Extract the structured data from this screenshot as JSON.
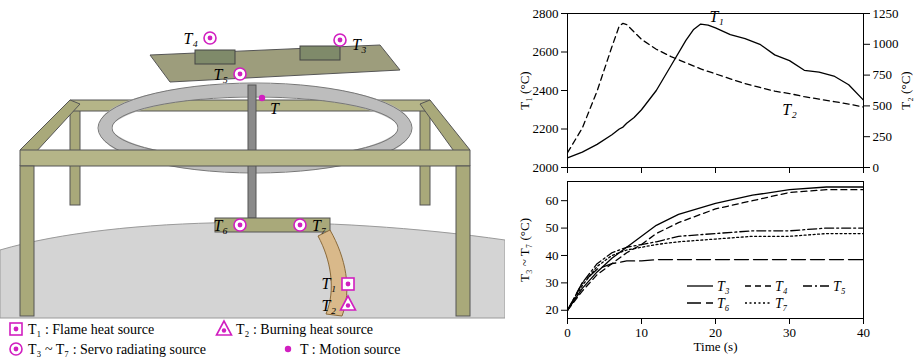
{
  "diagram": {
    "labels": [
      {
        "text": "T₁",
        "marker": "square"
      },
      {
        "text": "T₂",
        "marker": "triangle"
      },
      {
        "text": "T₃",
        "marker": "circle"
      },
      {
        "text": "T₄",
        "marker": "circle"
      },
      {
        "text": "T₅",
        "marker": "circle"
      },
      {
        "text": "T₆",
        "marker": "circle"
      },
      {
        "text": "T₇",
        "marker": "circle"
      },
      {
        "text": "T",
        "marker": "dot"
      }
    ],
    "legend": [
      {
        "marker": "square",
        "text": "T₁ : Flame heat source"
      },
      {
        "marker": "triangle",
        "text": "T₂ : Burning heat source"
      },
      {
        "marker": "circle",
        "text": "T₃ ~ T₇ : Servo radiating source"
      },
      {
        "marker": "dot",
        "text": "T : Motion source"
      }
    ]
  },
  "chart_data": [
    {
      "type": "line",
      "x": [
        0,
        2,
        4,
        6,
        7,
        7.5,
        8,
        9,
        10,
        12,
        14,
        16,
        17,
        18,
        19,
        20,
        22,
        24,
        26,
        28,
        30,
        32,
        34,
        36,
        38,
        40
      ],
      "series": [
        {
          "name": "T₁",
          "color": "#000000",
          "line_style": "solid",
          "values": [
            2050,
            2080,
            2120,
            2170,
            2200,
            2210,
            2230,
            2260,
            2300,
            2400,
            2530,
            2660,
            2715,
            2745,
            2740,
            2725,
            2690,
            2670,
            2640,
            2585,
            2555,
            2505,
            2495,
            2475,
            2430,
            2350
          ]
        },
        {
          "name": "T₂",
          "color": "#000000",
          "line_style": "dashed",
          "axis": "y2",
          "values": [
            120,
            320,
            620,
            980,
            1150,
            1170,
            1160,
            1100,
            1040,
            960,
            900,
            850,
            825,
            800,
            780,
            760,
            720,
            680,
            650,
            620,
            600,
            575,
            555,
            535,
            515,
            490
          ]
        }
      ],
      "xlim": [
        0,
        40
      ],
      "xticks": [
        0,
        10,
        20,
        30,
        40
      ],
      "ylim": [
        2000,
        2800
      ],
      "yticks": [
        2000,
        2200,
        2400,
        2600,
        2800
      ],
      "y2lim": [
        0,
        1250
      ],
      "y2ticks": [
        0,
        250,
        500,
        750,
        1000,
        1250
      ],
      "y_label": "T₁ (°C)",
      "y2_label": "T₂ (°C)",
      "tick_labels": "y"
    },
    {
      "type": "line",
      "x": [
        0,
        2,
        4,
        6,
        8,
        10,
        12,
        15,
        20,
        25,
        30,
        35,
        40
      ],
      "series": [
        {
          "name": "T₃",
          "color": "#000000",
          "line_style": "solid",
          "values": [
            20,
            28,
            34,
            39,
            43,
            47,
            51,
            55,
            59,
            62,
            64,
            65,
            65
          ]
        },
        {
          "name": "T₄",
          "color": "#000000",
          "line_style": "dashed",
          "values": [
            20,
            27,
            33,
            37,
            41,
            44,
            48,
            52,
            57,
            60,
            63,
            64,
            64
          ]
        },
        {
          "name": "T₅",
          "color": "#000000",
          "line_style": "dashdot",
          "values": [
            20,
            30,
            37,
            41,
            43,
            44,
            45,
            47,
            48,
            49,
            49,
            50,
            50
          ]
        },
        {
          "name": "T₆",
          "color": "#000000",
          "line_style": "longdash",
          "values": [
            20,
            30,
            35,
            37,
            38,
            38,
            38.5,
            38.5,
            38.5,
            38.5,
            38.5,
            38.5,
            38.5
          ]
        },
        {
          "name": "T₇",
          "color": "#000000",
          "line_style": "dotted",
          "values": [
            20,
            29,
            36,
            40,
            42,
            43,
            44,
            45,
            46,
            47,
            47,
            48,
            48
          ]
        }
      ],
      "xlim": [
        0,
        40
      ],
      "xticks": [
        0,
        10,
        20,
        30,
        40
      ],
      "ylim": [
        17,
        67
      ],
      "yticks": [
        20,
        30,
        40,
        50,
        60
      ],
      "x_label": "Time (s)",
      "y_label": "T₃ ~ T₇ (°C)",
      "legend": "lower right"
    }
  ]
}
